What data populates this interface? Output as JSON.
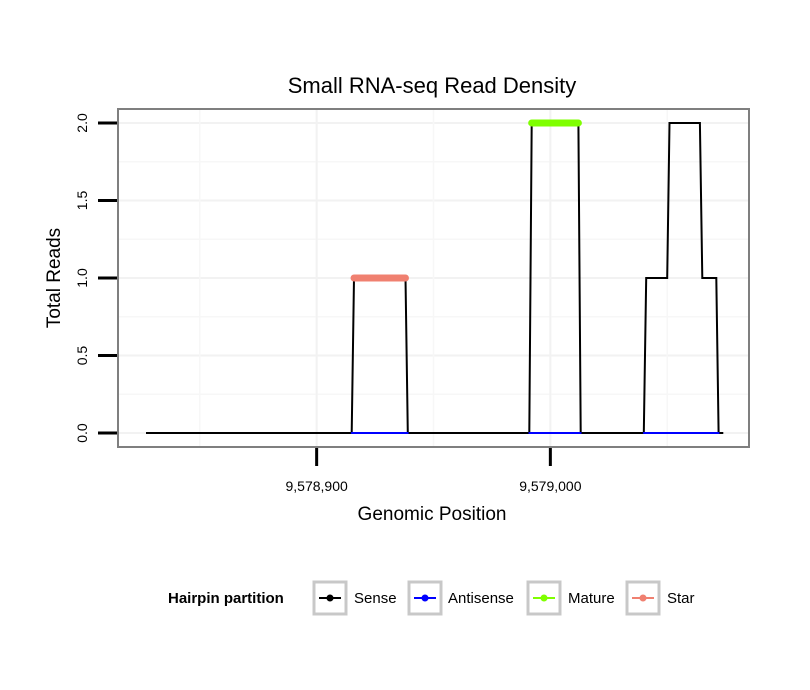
{
  "chart_data": {
    "type": "line",
    "title": "Small RNA-seq Read Density",
    "xlabel": "Genomic Position",
    "ylabel": "Total Reads",
    "xlim": [
      9578815,
      9579085
    ],
    "ylim": [
      -0.09,
      2.09
    ],
    "x_ticks": [
      {
        "value": 9578900,
        "label": "9,578,900"
      },
      {
        "value": 9579000,
        "label": "9,579,000"
      }
    ],
    "y_ticks": [
      {
        "value": 0,
        "label": "0.0"
      },
      {
        "value": 0.5,
        "label": "0.5"
      },
      {
        "value": 1,
        "label": "1.0"
      },
      {
        "value": 1.5,
        "label": "1.5"
      },
      {
        "value": 2,
        "label": "2.0"
      }
    ],
    "x_minor_gridlines": [
      9578850,
      9578950,
      9579050
    ],
    "grid": true,
    "series": [
      {
        "name": "Sense",
        "color": "#000000",
        "points": [
          [
            9578827,
            0
          ],
          [
            9578915,
            0
          ],
          [
            9578916,
            1
          ],
          [
            9578938,
            1
          ],
          [
            9578939,
            0
          ],
          [
            9578991,
            0
          ],
          [
            9578992,
            2
          ],
          [
            9579012,
            2
          ],
          [
            9579013,
            0
          ],
          [
            9579040,
            0
          ],
          [
            9579041,
            1
          ],
          [
            9579050,
            1
          ],
          [
            9579051,
            2
          ],
          [
            9579064,
            2
          ],
          [
            9579065,
            1
          ],
          [
            9579071,
            1
          ],
          [
            9579072,
            0
          ],
          [
            9579074,
            0
          ]
        ]
      },
      {
        "name": "Antisense",
        "color": "#0000ff",
        "segments": [
          [
            [
              9578915,
              0
            ],
            [
              9578939,
              0
            ]
          ],
          [
            [
              9578991,
              0
            ],
            [
              9579013,
              0
            ]
          ],
          [
            [
              9579040,
              0
            ],
            [
              9579072,
              0
            ]
          ]
        ]
      },
      {
        "name": "Mature",
        "color": "#7fff00",
        "segments": [
          [
            [
              9578992,
              2
            ],
            [
              9579012,
              2
            ]
          ]
        ]
      },
      {
        "name": "Star",
        "color": "#f08070",
        "segments": [
          [
            [
              9578916,
              1
            ],
            [
              9578938,
              1
            ]
          ]
        ]
      }
    ],
    "legend": {
      "title": "Hairpin partition",
      "placement": "bottom",
      "items": [
        {
          "label": "Sense",
          "color": "#000000"
        },
        {
          "label": "Antisense",
          "color": "#0000ff"
        },
        {
          "label": "Mature",
          "color": "#7fff00"
        },
        {
          "label": "Star",
          "color": "#f08070"
        }
      ]
    }
  }
}
